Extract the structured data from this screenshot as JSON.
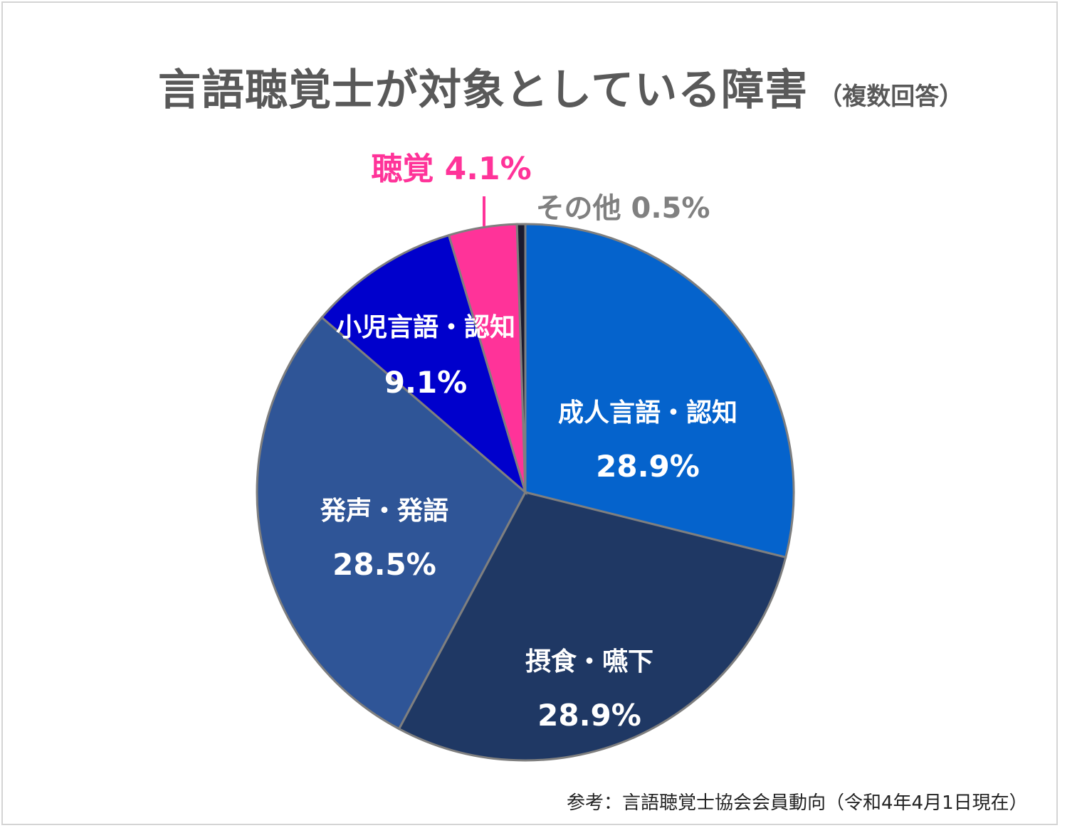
{
  "chart_data": {
    "type": "pie",
    "title": "言語聴覚士が対象としている障害",
    "subtitle": "（複数回答）",
    "source": "参考：言語聴覚士協会会員動向（令和4年4月1日現在）",
    "slices": [
      {
        "label": "成人言語・認知",
        "value": 28.9,
        "value_label": "28.9%",
        "color": "#0563CC",
        "label_color": "#ffffff"
      },
      {
        "label": "摂食・嚥下",
        "value": 28.9,
        "value_label": "28.9%",
        "color": "#1F3864",
        "label_color": "#ffffff"
      },
      {
        "label": "発声・発語",
        "value": 28.5,
        "value_label": "28.5%",
        "color": "#2F5597",
        "label_color": "#ffffff"
      },
      {
        "label": "小児言語・認知",
        "value": 9.1,
        "value_label": "9.1%",
        "color": "#0000CC",
        "label_color": "#ffffff"
      },
      {
        "label": "聴覚",
        "value": 4.1,
        "value_label": "4.1%",
        "color": "#FF3399",
        "label_color": "#FF3399"
      },
      {
        "label": "その他",
        "value": 0.5,
        "value_label": "0.5%",
        "color": "#1a1a2e",
        "label_color": "#808080"
      }
    ]
  }
}
